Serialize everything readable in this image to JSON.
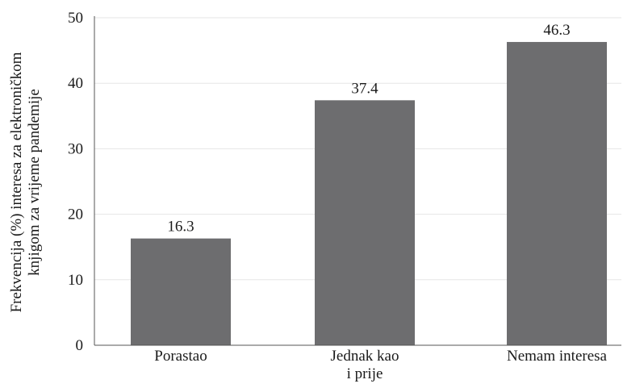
{
  "chart_data": {
    "type": "bar",
    "categories": [
      "Porastao",
      "Jednak kao i prije",
      "Nemam interesa"
    ],
    "category_label_lines": [
      [
        "Porastao"
      ],
      [
        "Jednak kao",
        "i prije"
      ],
      [
        "Nemam interesa"
      ]
    ],
    "values": [
      16.3,
      37.4,
      46.3
    ],
    "data_labels": [
      "16.3",
      "37.4",
      "46.3"
    ],
    "ylabel_lines": [
      "Frekvencija (%) interesa za elektroničkom",
      "knjigom za vrijeme pandemije"
    ],
    "xlabel": "",
    "title": "",
    "ylim": [
      0,
      50
    ],
    "yticks": [
      0,
      10,
      20,
      30,
      40,
      50
    ],
    "grid": true,
    "bar_color": "#6d6d6f",
    "grid_color": "#e6e6e6",
    "axis_color": "#555555"
  }
}
